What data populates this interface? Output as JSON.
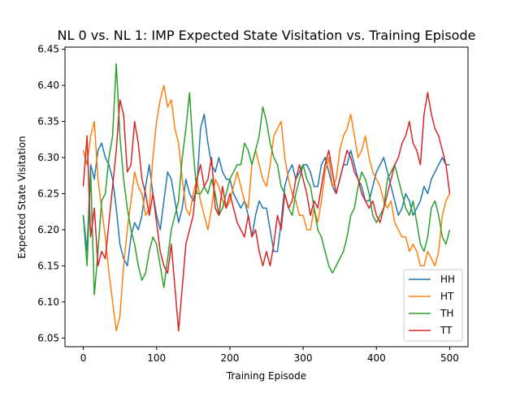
{
  "chart_data": {
    "type": "line",
    "title": "NL 0 vs. NL 1: IMP Expected State Visitation vs. Training Episode",
    "xlabel": "Training Episode",
    "ylabel": "Expected State Visitation",
    "xlim": [
      -25,
      525
    ],
    "ylim": [
      6.038,
      6.453
    ],
    "xticks": [
      0,
      100,
      200,
      300,
      400,
      500
    ],
    "xtick_labels": [
      "0",
      "100",
      "200",
      "300",
      "400",
      "500"
    ],
    "yticks": [
      6.05,
      6.1,
      6.15,
      6.2,
      6.25,
      6.3,
      6.35,
      6.4,
      6.45
    ],
    "ytick_labels": [
      "6.05",
      "6.10",
      "6.15",
      "6.20",
      "6.25",
      "6.30",
      "6.35",
      "6.40",
      "6.45"
    ],
    "grid": false,
    "legend_position": "lower-right",
    "colors": {
      "HH": "#1f77b4",
      "HT": "#ff7f0e",
      "TH": "#2ca02c",
      "TT": "#d62728"
    },
    "x": [
      0,
      5,
      10,
      15,
      20,
      25,
      30,
      35,
      40,
      45,
      50,
      55,
      60,
      65,
      70,
      75,
      80,
      85,
      90,
      95,
      100,
      105,
      110,
      115,
      120,
      125,
      130,
      135,
      140,
      145,
      150,
      155,
      160,
      165,
      170,
      175,
      180,
      185,
      190,
      195,
      200,
      205,
      210,
      215,
      220,
      225,
      230,
      235,
      240,
      245,
      250,
      255,
      260,
      265,
      270,
      275,
      280,
      285,
      290,
      295,
      300,
      305,
      310,
      315,
      320,
      325,
      330,
      335,
      340,
      345,
      350,
      355,
      360,
      365,
      370,
      375,
      380,
      385,
      390,
      395,
      400,
      405,
      410,
      415,
      420,
      425,
      430,
      435,
      440,
      445,
      450,
      455,
      460,
      465,
      470,
      475,
      480,
      485,
      490,
      495,
      500
    ],
    "series": [
      {
        "name": "HH",
        "values": [
          6.22,
          6.17,
          6.29,
          6.27,
          6.31,
          6.32,
          6.3,
          6.29,
          6.27,
          6.23,
          6.18,
          6.16,
          6.15,
          6.19,
          6.21,
          6.2,
          6.22,
          6.26,
          6.29,
          6.25,
          6.22,
          6.2,
          6.24,
          6.28,
          6.27,
          6.24,
          6.21,
          6.23,
          6.27,
          6.25,
          6.24,
          6.26,
          6.34,
          6.36,
          6.32,
          6.29,
          6.28,
          6.3,
          6.28,
          6.27,
          6.27,
          6.25,
          6.24,
          6.23,
          6.24,
          6.22,
          6.19,
          6.22,
          6.24,
          6.23,
          6.23,
          6.2,
          6.17,
          6.17,
          6.21,
          6.26,
          6.28,
          6.29,
          6.27,
          6.28,
          6.29,
          6.29,
          6.28,
          6.26,
          6.26,
          6.29,
          6.3,
          6.28,
          6.26,
          6.25,
          6.27,
          6.29,
          6.29,
          6.31,
          6.29,
          6.27,
          6.26,
          6.24,
          6.24,
          6.26,
          6.28,
          6.29,
          6.3,
          6.28,
          6.26,
          6.24,
          6.22,
          6.23,
          6.25,
          6.24,
          6.22,
          6.23,
          6.24,
          6.26,
          6.25,
          6.27,
          6.28,
          6.29,
          6.3,
          6.29,
          6.29
        ]
      },
      {
        "name": "HT",
        "values": [
          6.31,
          6.29,
          6.33,
          6.35,
          6.27,
          6.23,
          6.19,
          6.14,
          6.1,
          6.06,
          6.08,
          6.15,
          6.2,
          6.24,
          6.28,
          6.26,
          6.25,
          6.22,
          6.23,
          6.3,
          6.35,
          6.38,
          6.4,
          6.37,
          6.38,
          6.34,
          6.32,
          6.27,
          6.23,
          6.22,
          6.25,
          6.27,
          6.24,
          6.22,
          6.2,
          6.23,
          6.27,
          6.26,
          6.24,
          6.23,
          6.24,
          6.26,
          6.28,
          6.26,
          6.24,
          6.23,
          6.29,
          6.31,
          6.29,
          6.27,
          6.26,
          6.29,
          6.33,
          6.34,
          6.35,
          6.3,
          6.27,
          6.25,
          6.24,
          6.22,
          6.22,
          6.2,
          6.2,
          6.23,
          6.21,
          6.24,
          6.28,
          6.3,
          6.26,
          6.27,
          6.31,
          6.33,
          6.34,
          6.36,
          6.33,
          6.3,
          6.31,
          6.33,
          6.3,
          6.28,
          6.27,
          6.26,
          6.24,
          6.23,
          6.24,
          6.21,
          6.2,
          6.19,
          6.19,
          6.17,
          6.18,
          6.17,
          6.15,
          6.15,
          6.17,
          6.16,
          6.15,
          6.17,
          6.22,
          6.24,
          6.25
        ]
      },
      {
        "name": "TH",
        "values": [
          6.22,
          6.15,
          6.28,
          6.11,
          6.17,
          6.24,
          6.25,
          6.3,
          6.33,
          6.43,
          6.33,
          6.27,
          6.23,
          6.2,
          6.18,
          6.15,
          6.13,
          6.14,
          6.17,
          6.19,
          6.18,
          6.15,
          6.12,
          6.16,
          6.2,
          6.22,
          6.24,
          6.3,
          6.34,
          6.39,
          6.31,
          6.25,
          6.25,
          6.26,
          6.25,
          6.27,
          6.25,
          6.22,
          6.23,
          6.25,
          6.27,
          6.28,
          6.29,
          6.29,
          6.32,
          6.31,
          6.29,
          6.31,
          6.33,
          6.37,
          6.35,
          6.32,
          6.3,
          6.29,
          6.26,
          6.25,
          6.23,
          6.22,
          6.25,
          6.27,
          6.29,
          6.27,
          6.26,
          6.23,
          6.2,
          6.19,
          6.17,
          6.15,
          6.14,
          6.15,
          6.16,
          6.17,
          6.19,
          6.22,
          6.23,
          6.26,
          6.28,
          6.27,
          6.25,
          6.22,
          6.21,
          6.22,
          6.23,
          6.27,
          6.28,
          6.29,
          6.27,
          6.25,
          6.23,
          6.22,
          6.24,
          6.21,
          6.18,
          6.17,
          6.19,
          6.23,
          6.24,
          6.22,
          6.19,
          6.18,
          6.2
        ]
      },
      {
        "name": "TT",
        "values": [
          6.26,
          6.33,
          6.19,
          6.23,
          6.15,
          6.17,
          6.16,
          6.21,
          6.26,
          6.31,
          6.38,
          6.36,
          6.28,
          6.29,
          6.35,
          6.32,
          6.27,
          6.25,
          6.22,
          6.25,
          6.21,
          6.17,
          6.15,
          6.14,
          6.18,
          6.12,
          6.06,
          6.12,
          6.18,
          6.2,
          6.22,
          6.27,
          6.29,
          6.26,
          6.27,
          6.3,
          6.23,
          6.22,
          6.26,
          6.23,
          6.25,
          6.23,
          6.21,
          6.2,
          6.19,
          6.22,
          6.19,
          6.2,
          6.17,
          6.15,
          6.17,
          6.15,
          6.18,
          6.22,
          6.2,
          6.25,
          6.23,
          6.24,
          6.27,
          6.29,
          6.27,
          6.25,
          6.22,
          6.24,
          6.23,
          6.26,
          6.29,
          6.31,
          6.28,
          6.25,
          6.27,
          6.29,
          6.31,
          6.3,
          6.28,
          6.27,
          6.25,
          6.24,
          6.23,
          6.24,
          6.22,
          6.21,
          6.23,
          6.25,
          6.27,
          6.29,
          6.3,
          6.32,
          6.33,
          6.35,
          6.32,
          6.31,
          6.29,
          6.36,
          6.39,
          6.36,
          6.34,
          6.33,
          6.31,
          6.29,
          6.25
        ]
      }
    ]
  }
}
